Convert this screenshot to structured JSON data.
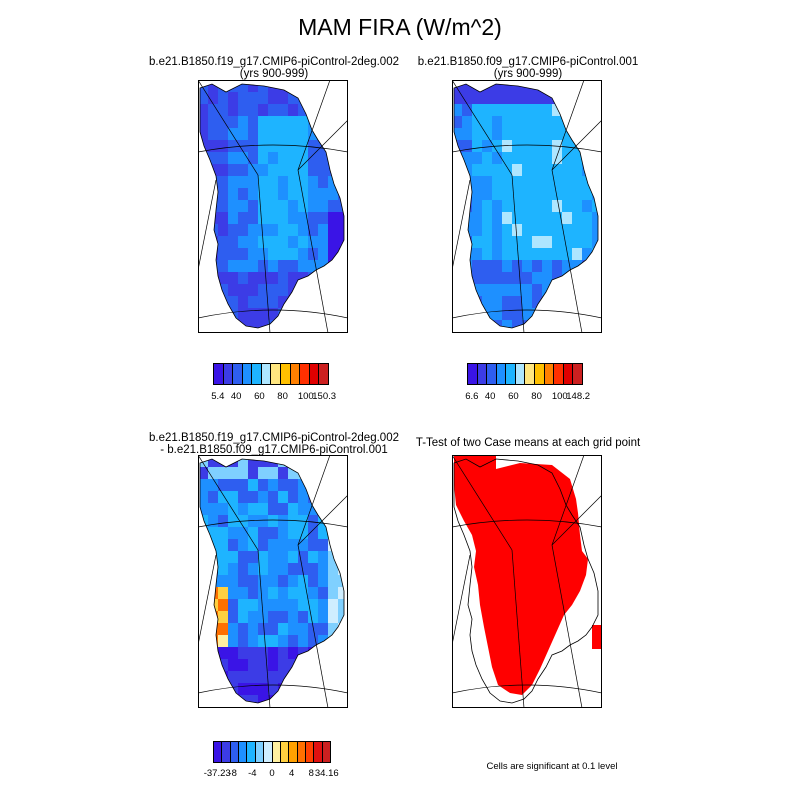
{
  "title": "MAM FIRA (W/m^2)",
  "panels": [
    {
      "id": "case1",
      "title_line1": "b.e21.B1850.f19_g17.CMIP6-piControl-2deg.002",
      "title_line2": "(yrs 900-999)",
      "colorbar": {
        "colors": [
          "#3a14e6",
          "#3c3ce6",
          "#2e5ef0",
          "#1e90ff",
          "#1eb4ff",
          "#aee6ff",
          "#ffe680",
          "#ffc000",
          "#ff8000",
          "#ff3000",
          "#e00000",
          "#cc2020"
        ],
        "labels": [
          "5.4",
          "40",
          "60",
          "80",
          "100",
          "150.3"
        ]
      }
    },
    {
      "id": "case2",
      "title_line1": "b.e21.B1850.f09_g17.CMIP6-piControl.001",
      "title_line2": "(yrs 900-999)",
      "colorbar": {
        "colors": [
          "#3a14e6",
          "#3c3ce6",
          "#2e5ef0",
          "#1e90ff",
          "#1eb4ff",
          "#aee6ff",
          "#ffe680",
          "#ffc000",
          "#ff8000",
          "#ff3000",
          "#e00000",
          "#cc2020"
        ],
        "labels": [
          "6.6",
          "40",
          "60",
          "80",
          "100",
          "148.2"
        ]
      }
    },
    {
      "id": "diff",
      "title_line1": "b.e21.B1850.f19_g17.CMIP6-piControl-2deg.002",
      "title_line2": "- b.e21.B1850.f09_g17.CMIP6-piControl.001",
      "colorbar": {
        "colors": [
          "#3a14e6",
          "#3c3ce6",
          "#2e5ef0",
          "#1e90ff",
          "#1eb4ff",
          "#7fd0ff",
          "#cfeeff",
          "#fff0a0",
          "#ffd040",
          "#ffa000",
          "#ff7000",
          "#ff4000",
          "#e01010",
          "#cc2020"
        ],
        "labels": [
          "-37.23",
          "-8",
          "-4",
          "0",
          "4",
          "8",
          "34.16"
        ]
      }
    },
    {
      "id": "ttest",
      "title_line1": "T-Test of two Case means at each grid point",
      "title_line2": "",
      "note": "Cells are significant at 0.1 level",
      "fill_color": "#ff0000"
    }
  ]
}
